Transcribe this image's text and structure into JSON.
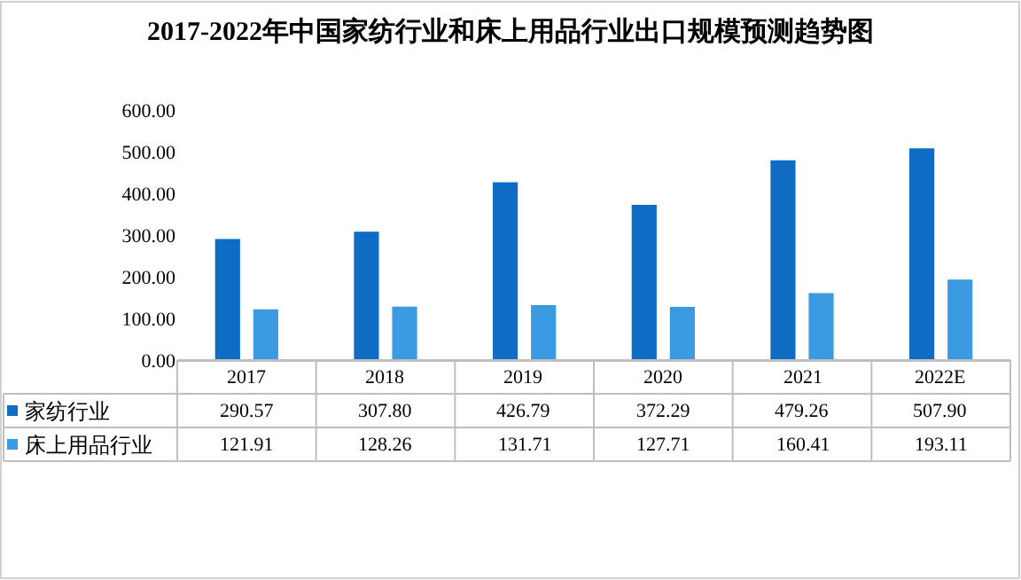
{
  "chart_data": {
    "type": "bar",
    "title": "2017-2022年中国家纺行业和床上用品行业出口规模预测趋势图",
    "categories": [
      "2017",
      "2018",
      "2019",
      "2020",
      "2021",
      "2022E"
    ],
    "series": [
      {
        "name": "家纺行业",
        "color": "#0f6cc4",
        "values": [
          290.57,
          307.8,
          426.79,
          372.29,
          479.26,
          507.9
        ],
        "value_labels": [
          "290.57",
          "307.80",
          "426.79",
          "372.29",
          "479.26",
          "507.90"
        ]
      },
      {
        "name": "床上用品行业",
        "color": "#3a9be3",
        "values": [
          121.91,
          128.26,
          131.71,
          127.71,
          160.41,
          193.11
        ],
        "value_labels": [
          "121.91",
          "128.26",
          "131.71",
          "127.71",
          "160.41",
          "193.11"
        ]
      }
    ],
    "ylim": [
      0,
      600
    ],
    "yticks": [
      {
        "value": 0,
        "label": "0.00"
      },
      {
        "value": 100,
        "label": "100.00"
      },
      {
        "value": 200,
        "label": "200.00"
      },
      {
        "value": 300,
        "label": "300.00"
      },
      {
        "value": 400,
        "label": "400.00"
      },
      {
        "value": 500,
        "label": "500.00"
      },
      {
        "value": 600,
        "label": "600.00"
      }
    ],
    "legend": "bottom",
    "data_labels": true
  }
}
